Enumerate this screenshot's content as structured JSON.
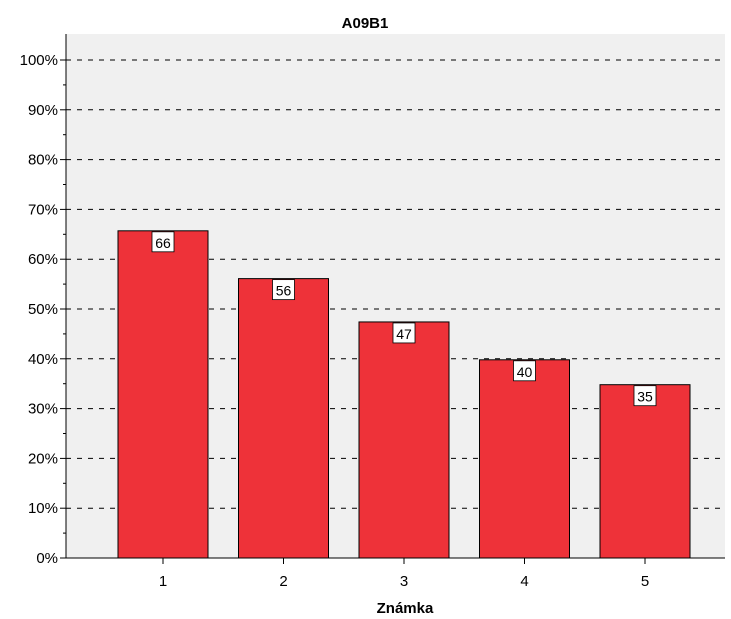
{
  "chart_data": {
    "type": "bar",
    "title": "A09B1",
    "xlabel": "Známka",
    "ylabel": "",
    "categories": [
      "1",
      "2",
      "3",
      "4",
      "5"
    ],
    "values": [
      65.7,
      56.1,
      47.4,
      39.8,
      34.8
    ],
    "data_labels": [
      "66",
      "56",
      "47",
      "40",
      "35"
    ],
    "ylim": [
      0,
      100
    ],
    "y_ticks": [
      "0%",
      "10%",
      "20%",
      "30%",
      "40%",
      "50%",
      "60%",
      "70%",
      "80%",
      "90%",
      "100%"
    ],
    "grid": "horizontal dashed",
    "bar_color": "#ee3239",
    "plot_background": "#f0f0f0"
  }
}
